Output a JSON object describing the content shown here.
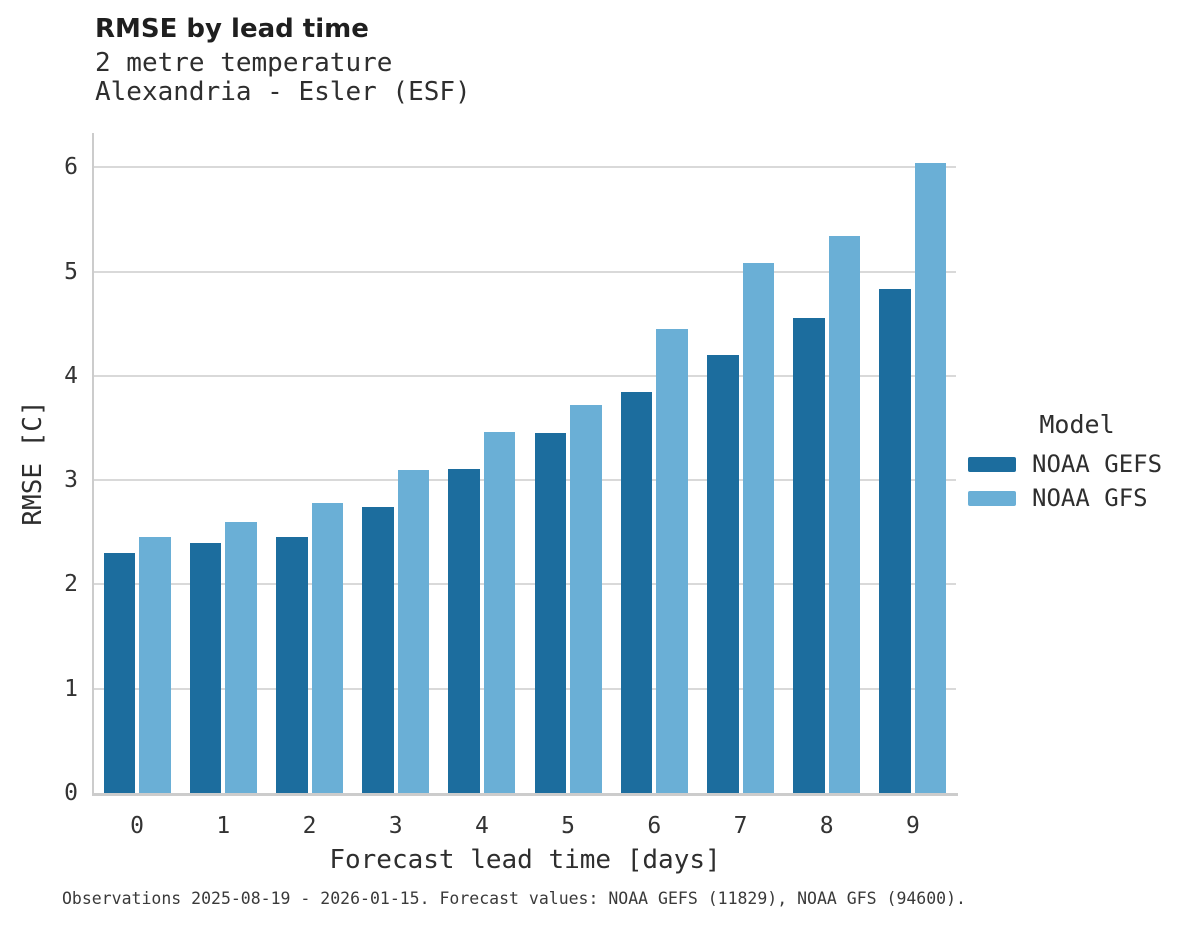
{
  "header": {
    "title": "RMSE by lead time",
    "subtitle_line1": "2 metre temperature",
    "subtitle_line2": "Alexandria - Esler (ESF)"
  },
  "legend": {
    "title": "Model",
    "entries": [
      {
        "label": "NOAA GEFS",
        "color": "#1c6d9e"
      },
      {
        "label": "NOAA GFS",
        "color": "#6aafd6"
      }
    ]
  },
  "footer": {
    "text": "Observations 2025-08-19 - 2026-01-15. Forecast values: NOAA GEFS (11829), NOAA GFS (94600)."
  },
  "colors": {
    "series_dark": "#1c6d9e",
    "series_light": "#6aafd6",
    "gridline": "#d9d9d9",
    "axis_line": "#cccccc"
  },
  "chart_data": {
    "type": "bar",
    "title": "RMSE by lead time",
    "subtitle": "2 metre temperature | Alexandria - Esler (ESF)",
    "xlabel": "Forecast lead time [days]",
    "ylabel": "RMSE [C]",
    "categories": [
      "0",
      "1",
      "2",
      "3",
      "4",
      "5",
      "6",
      "7",
      "8",
      "9"
    ],
    "series": [
      {
        "name": "NOAA GEFS",
        "color": "#1c6d9e",
        "values": [
          2.3,
          2.4,
          2.46,
          2.74,
          3.11,
          3.45,
          3.85,
          4.2,
          4.56,
          4.83
        ]
      },
      {
        "name": "NOAA GFS",
        "color": "#6aafd6",
        "values": [
          2.46,
          2.6,
          2.78,
          3.1,
          3.46,
          3.72,
          4.45,
          5.08,
          5.34,
          6.04
        ]
      }
    ],
    "ylim": [
      0,
      6.33
    ],
    "yticks": [
      0,
      1,
      2,
      3,
      4,
      5,
      6
    ],
    "grid": true,
    "legend_title": "Model",
    "legend_position": "right"
  }
}
